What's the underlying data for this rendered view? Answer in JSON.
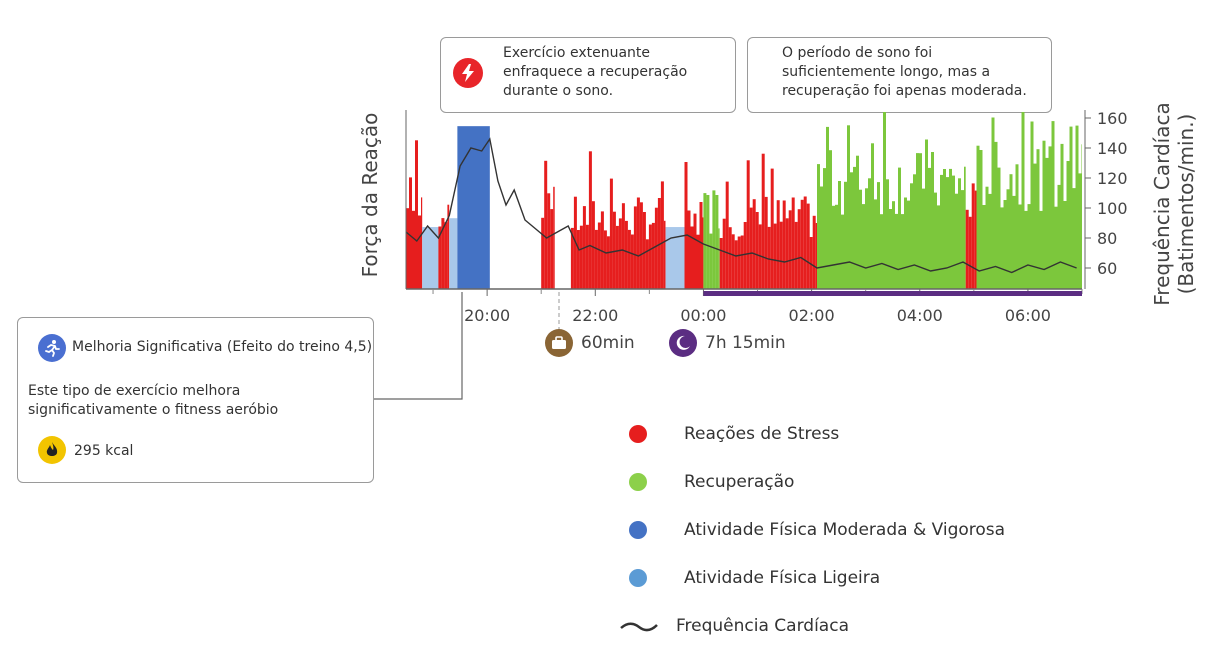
{
  "callouts": {
    "top_left": "Exercício extenuante enfraquece a recuperação durante o sono.",
    "top_right": "O período de sono foi suficientemente longo, mas a recuperação foi apenas moderada.",
    "workout": {
      "title": "Melhoria Significativa (Efeito do treino 4,5)",
      "description": "Este tipo de exercício melhora significativamente o fitness aeróbio",
      "calories": "295 kcal"
    }
  },
  "markers": {
    "work_duration": "60min",
    "sleep_duration": "7h 15min"
  },
  "legend": [
    {
      "label": "Reações de Stress",
      "color": "#e61e1e",
      "shape": "dot"
    },
    {
      "label": "Recuperação",
      "color": "#8cd04a",
      "shape": "dot"
    },
    {
      "label": "Atividade Física Moderada & Vigorosa",
      "color": "#4472c4",
      "shape": "dot"
    },
    {
      "label": "Atividade Física Ligeira",
      "color": "#5b9bd5",
      "shape": "dot"
    },
    {
      "label": "Frequência Cardíaca",
      "color": "#333333",
      "shape": "line"
    }
  ],
  "icons": {
    "stress": "lightning-icon",
    "workout": "running-person-icon",
    "calories": "flame-icon",
    "work": "briefcase-icon",
    "sleep": "moon-icon"
  },
  "colors": {
    "stress": "#e61e1e",
    "recovery": "#7cc73c",
    "vigorous": "#4472c4",
    "light": "#a9c8ea",
    "heart_rate": "#333333",
    "sleep_bar": "#5b2d82",
    "work_badge": "#8a6535",
    "workout_badge": "#4a6fd1",
    "calorie_badge": "#f2c400"
  },
  "chart_data": {
    "type": "bar",
    "xlabel": "",
    "ylabel_left": "Força da Reação",
    "ylabel_right": "Frequência Cardíaca (Batimentos/min.)",
    "x_ticks": [
      "20:00",
      "22:00",
      "00:00",
      "02:00",
      "04:00",
      "06:00"
    ],
    "y_right_ticks": [
      60,
      80,
      100,
      120,
      140,
      160
    ],
    "ylim_right": [
      46,
      164
    ],
    "x_range_hours": [
      18.5,
      31.0
    ],
    "segments": [
      {
        "type": "stress",
        "start": 18.5,
        "end": 18.8,
        "level": 0.55
      },
      {
        "type": "light",
        "start": 18.8,
        "end": 19.1,
        "level": 0.35
      },
      {
        "type": "stress",
        "start": 19.1,
        "end": 19.3,
        "level": 0.6
      },
      {
        "type": "light",
        "start": 19.3,
        "end": 19.45,
        "level": 0.4
      },
      {
        "type": "vigorous",
        "start": 19.45,
        "end": 20.05,
        "level": 0.92
      },
      {
        "type": "stress",
        "start": 21.0,
        "end": 21.25,
        "level": 0.7
      },
      {
        "type": "stress",
        "start": 21.55,
        "end": 23.3,
        "level": 0.5
      },
      {
        "type": "light",
        "start": 23.3,
        "end": 23.65,
        "level": 0.35
      },
      {
        "type": "stress",
        "start": 23.65,
        "end": 24.0,
        "level": 0.45
      },
      {
        "type": "recovery",
        "start": 24.0,
        "end": 24.3,
        "level": 0.55
      },
      {
        "type": "stress",
        "start": 24.3,
        "end": 26.1,
        "level": 0.5
      },
      {
        "type": "recovery",
        "start": 26.1,
        "end": 28.85,
        "level": 0.75
      },
      {
        "type": "stress",
        "start": 28.85,
        "end": 29.05,
        "level": 0.55
      },
      {
        "type": "recovery",
        "start": 29.05,
        "end": 31.0,
        "level": 0.8
      }
    ],
    "heart_rate": [
      {
        "x": 18.5,
        "y": 84
      },
      {
        "x": 18.7,
        "y": 78
      },
      {
        "x": 18.9,
        "y": 88
      },
      {
        "x": 19.1,
        "y": 80
      },
      {
        "x": 19.3,
        "y": 95
      },
      {
        "x": 19.5,
        "y": 128
      },
      {
        "x": 19.7,
        "y": 140
      },
      {
        "x": 19.9,
        "y": 138
      },
      {
        "x": 20.05,
        "y": 146
      },
      {
        "x": 20.2,
        "y": 118
      },
      {
        "x": 20.35,
        "y": 102
      },
      {
        "x": 20.5,
        "y": 112
      },
      {
        "x": 20.7,
        "y": 92
      },
      {
        "x": 20.9,
        "y": 86
      },
      {
        "x": 21.1,
        "y": 80
      },
      {
        "x": 21.3,
        "y": 84
      },
      {
        "x": 21.5,
        "y": 88
      },
      {
        "x": 21.7,
        "y": 72
      },
      {
        "x": 21.9,
        "y": 75
      },
      {
        "x": 22.2,
        "y": 70
      },
      {
        "x": 22.5,
        "y": 72
      },
      {
        "x": 22.8,
        "y": 68
      },
      {
        "x": 23.1,
        "y": 74
      },
      {
        "x": 23.4,
        "y": 80
      },
      {
        "x": 23.7,
        "y": 82
      },
      {
        "x": 24.0,
        "y": 76
      },
      {
        "x": 24.3,
        "y": 72
      },
      {
        "x": 24.6,
        "y": 68
      },
      {
        "x": 24.9,
        "y": 70
      },
      {
        "x": 25.2,
        "y": 66
      },
      {
        "x": 25.5,
        "y": 64
      },
      {
        "x": 25.8,
        "y": 67
      },
      {
        "x": 26.1,
        "y": 60
      },
      {
        "x": 26.4,
        "y": 62
      },
      {
        "x": 26.7,
        "y": 64
      },
      {
        "x": 27.0,
        "y": 60
      },
      {
        "x": 27.3,
        "y": 63
      },
      {
        "x": 27.6,
        "y": 59
      },
      {
        "x": 27.9,
        "y": 62
      },
      {
        "x": 28.2,
        "y": 58
      },
      {
        "x": 28.5,
        "y": 60
      },
      {
        "x": 28.8,
        "y": 64
      },
      {
        "x": 29.1,
        "y": 58
      },
      {
        "x": 29.4,
        "y": 61
      },
      {
        "x": 29.7,
        "y": 57
      },
      {
        "x": 30.0,
        "y": 62
      },
      {
        "x": 30.3,
        "y": 59
      },
      {
        "x": 30.6,
        "y": 64
      },
      {
        "x": 30.9,
        "y": 60
      }
    ],
    "sleep_period": {
      "start": 24.0,
      "end": 31.0
    }
  }
}
